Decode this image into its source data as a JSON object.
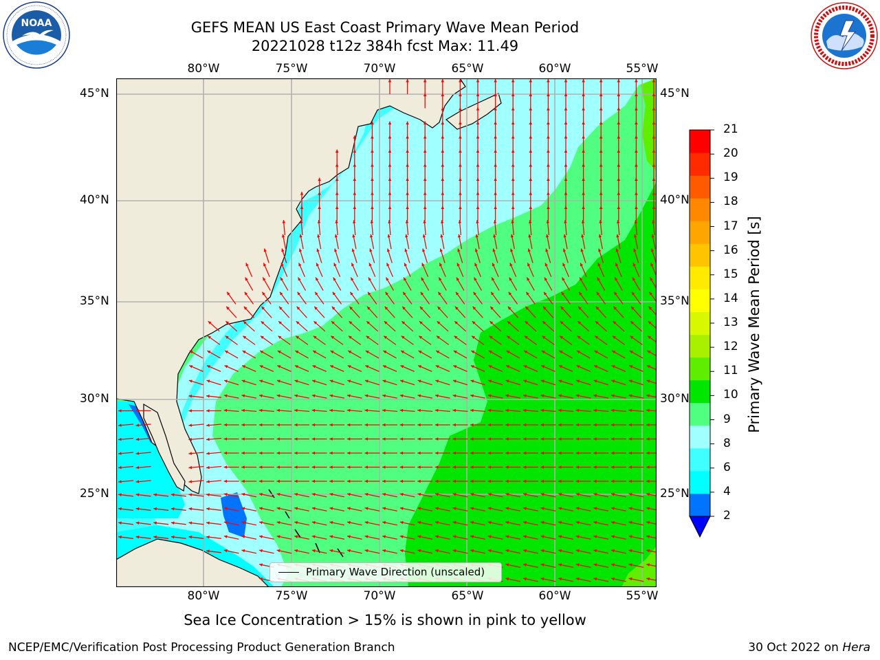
{
  "header": {
    "title_line1": "GEFS MEAN US East Coast Primary Wave Mean Period",
    "title_line2": "20221028 t12z 384h fcst   Max: 11.49"
  },
  "logos": {
    "left": {
      "name": "NOAA",
      "ring_text": "NATIONAL OCEANIC AND ATMOSPHERIC ADMINISTRATION · U.S. DEPARTMENT OF COMMERCE"
    },
    "right": {
      "name": "National Weather Service",
      "ring_text": "NATIONAL WEATHER SERVICE"
    }
  },
  "map": {
    "lon_labels": [
      "80°W",
      "75°W",
      "70°W",
      "65°W",
      "60°W",
      "55°W"
    ],
    "lat_labels": [
      "45°N",
      "40°N",
      "35°N",
      "30°N",
      "25°N"
    ],
    "colors": {
      "land": "#efecdc",
      "coast": "#000000",
      "grid": "#b0b0b0",
      "arrow": "#ff0000"
    },
    "legend_text": "Primary Wave Direction (unscaled)",
    "predominant_direction": "northward in the north, westward in the south"
  },
  "colorbar": {
    "label": "Primary Wave Mean Period [s]",
    "ticks": [
      "21",
      "20",
      "19",
      "18",
      "17",
      "16",
      "15",
      "14",
      "13",
      "12",
      "11",
      "10",
      "9",
      "8",
      "6",
      "4",
      "2"
    ],
    "colors_bottom_to_top": [
      "#0073ff",
      "#00ffff",
      "#40ffff",
      "#a0ffff",
      "#50ff80",
      "#00e600",
      "#60ee00",
      "#a8f000",
      "#d8f800",
      "#ffff00",
      "#ffea00",
      "#ffc400",
      "#ffa500",
      "#ff8800",
      "#ff5a00",
      "#ff2a00",
      "#ff0000"
    ],
    "extend_color": "#0000ff"
  },
  "footer": {
    "subtitle": "Sea Ice Concentration > 15% is shown in pink to yellow",
    "credit": "NCEP/EMC/Verification Post Processing Product Generation Branch",
    "date": "30 Oct 2022 on ",
    "machine": "Hera"
  }
}
